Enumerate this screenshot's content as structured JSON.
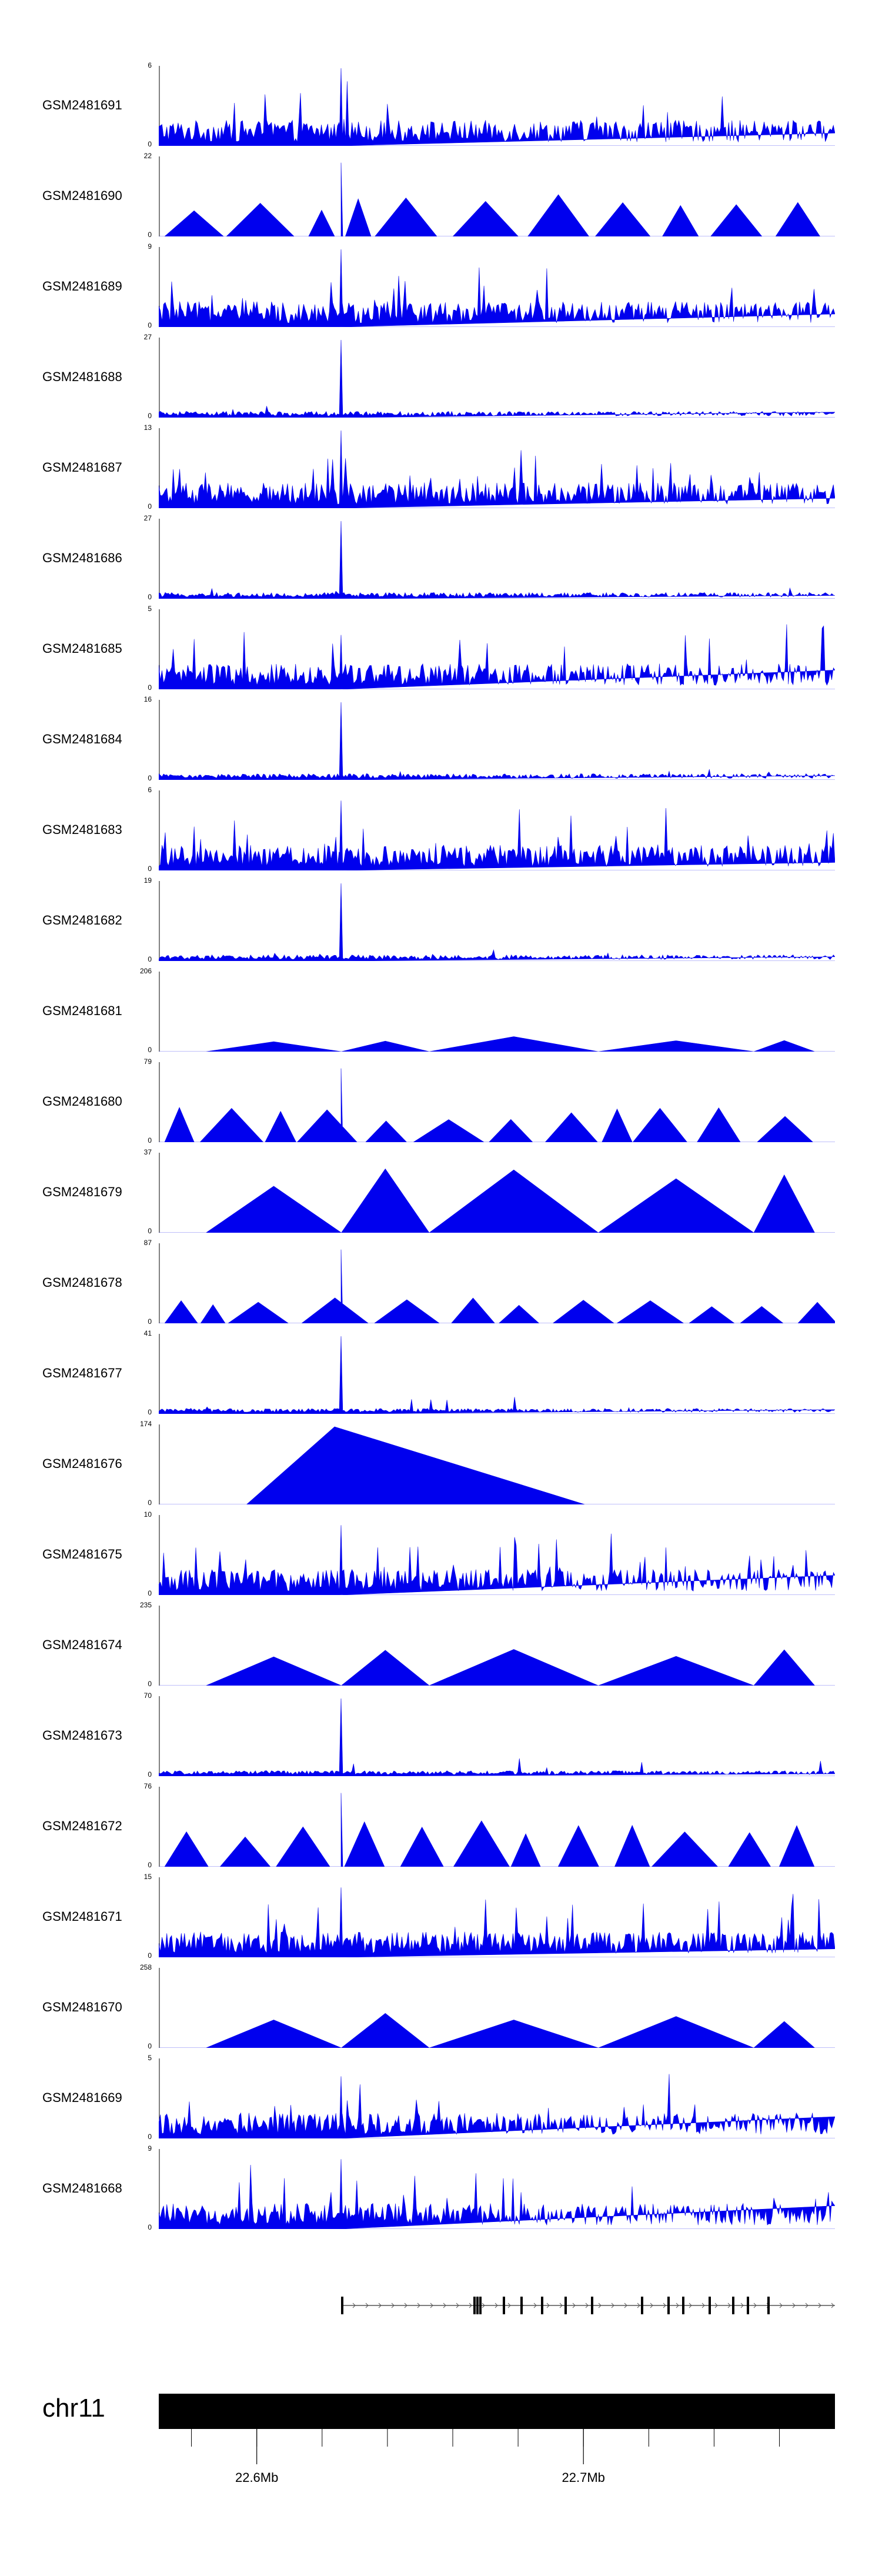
{
  "chart_data": {
    "type": "area",
    "description_free": true,
    "xlim": [
      22.57,
      22.777
    ],
    "xunit": "Mb",
    "tracks": [
      {
        "label": "GSM2481691",
        "ymax": 6,
        "ymin": 0,
        "style": "dense",
        "peak_height": 1.0
      },
      {
        "label": "GSM2481690",
        "ymax": 22,
        "ymin": 0,
        "style": "sparse",
        "peak_height": 0.55
      },
      {
        "label": "GSM2481689",
        "ymax": 9,
        "ymin": 0,
        "style": "dense",
        "peak_height": 1.0
      },
      {
        "label": "GSM2481688",
        "ymax": 27,
        "ymin": 0,
        "style": "peak",
        "peak_height": 1.0
      },
      {
        "label": "GSM2481687",
        "ymax": 13,
        "ymin": 0,
        "style": "dense",
        "peak_height": 1.0
      },
      {
        "label": "GSM2481686",
        "ymax": 27,
        "ymin": 0,
        "style": "peak",
        "peak_height": 1.0
      },
      {
        "label": "GSM2481685",
        "ymax": 5,
        "ymin": 0,
        "style": "dense",
        "peak_height": 0.7
      },
      {
        "label": "GSM2481684",
        "ymax": 16,
        "ymin": 0,
        "style": "peak",
        "peak_height": 1.0
      },
      {
        "label": "GSM2481683",
        "ymax": 6,
        "ymin": 0,
        "style": "dense",
        "peak_height": 0.9
      },
      {
        "label": "GSM2481682",
        "ymax": 19,
        "ymin": 0,
        "style": "peak",
        "peak_height": 1.0
      },
      {
        "label": "GSM2481681",
        "ymax": 206,
        "ymin": 0,
        "style": "triangles",
        "peak_height": 0.2
      },
      {
        "label": "GSM2481680",
        "ymax": 79,
        "ymin": 0,
        "style": "sparse",
        "peak_height": 0.45
      },
      {
        "label": "GSM2481679",
        "ymax": 37,
        "ymin": 0,
        "style": "triangles",
        "peak_height": 0.9
      },
      {
        "label": "GSM2481678",
        "ymax": 87,
        "ymin": 0,
        "style": "sparse",
        "peak_height": 0.35
      },
      {
        "label": "GSM2481677",
        "ymax": 41,
        "ymin": 0,
        "style": "low",
        "peak_height": 1.0
      },
      {
        "label": "GSM2481676",
        "ymax": 174,
        "ymin": 0,
        "style": "single",
        "peak_height": 1.0
      },
      {
        "label": "GSM2481675",
        "ymax": 10,
        "ymin": 0,
        "style": "dense",
        "peak_height": 0.9
      },
      {
        "label": "GSM2481674",
        "ymax": 235,
        "ymin": 0,
        "style": "triangles",
        "peak_height": 0.5
      },
      {
        "label": "GSM2481673",
        "ymax": 70,
        "ymin": 0,
        "style": "low",
        "peak_height": 1.0
      },
      {
        "label": "GSM2481672",
        "ymax": 76,
        "ymin": 0,
        "style": "sparse",
        "peak_height": 0.6
      },
      {
        "label": "GSM2481671",
        "ymax": 15,
        "ymin": 0,
        "style": "dense",
        "peak_height": 0.9
      },
      {
        "label": "GSM2481670",
        "ymax": 258,
        "ymin": 0,
        "style": "triangles",
        "peak_height": 0.45
      },
      {
        "label": "GSM2481669",
        "ymax": 5,
        "ymin": 0,
        "style": "dense",
        "peak_height": 0.8
      },
      {
        "label": "GSM2481668",
        "ymax": 9,
        "ymin": 0,
        "style": "dense",
        "peak_height": 0.9
      }
    ],
    "chromosome": "chr11",
    "ticks": [
      {
        "pos": 22.6,
        "label": "22.6Mb"
      },
      {
        "pos": 22.7,
        "label": "22.7Mb"
      }
    ],
    "minor_ticks": [
      22.58,
      22.6,
      22.62,
      22.64,
      22.66,
      22.68,
      22.7,
      22.72,
      22.74,
      22.76
    ],
    "fill_color": "#0000ee"
  }
}
